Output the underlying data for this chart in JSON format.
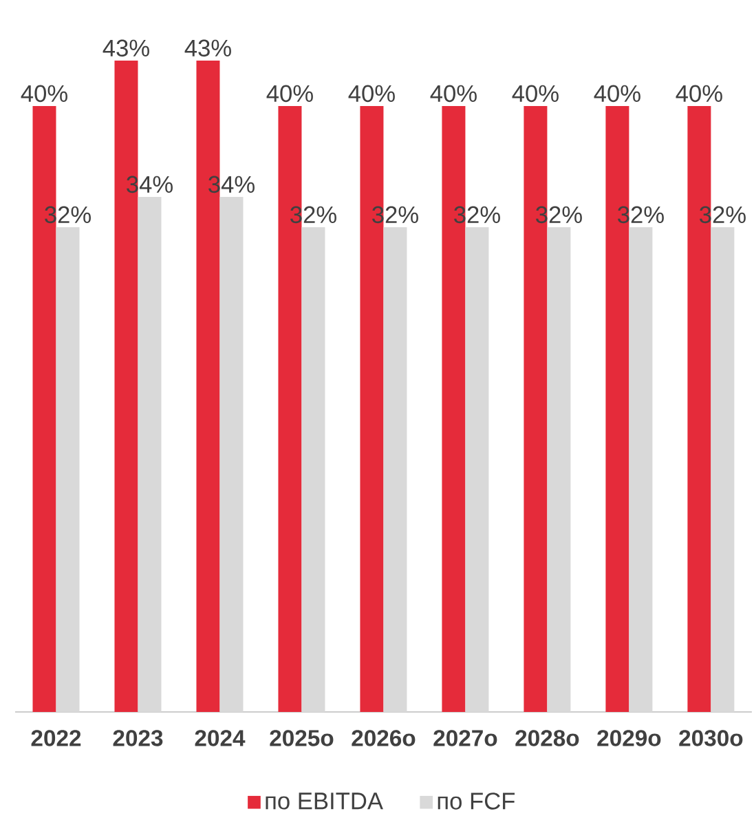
{
  "chart_data": {
    "type": "bar",
    "categories": [
      "2022",
      "2023",
      "2024",
      "2025о",
      "2026о",
      "2027о",
      "2028о",
      "2029о",
      "2030о"
    ],
    "series": [
      {
        "name": "по EBITDA",
        "color": "#e52b3a",
        "values": [
          40,
          43,
          43,
          40,
          40,
          40,
          40,
          40,
          40
        ],
        "value_labels": [
          "40%",
          "43%",
          "43%",
          "40%",
          "40%",
          "40%",
          "40%",
          "40%",
          "40%"
        ]
      },
      {
        "name": "по FCF",
        "color": "#d9d9d9",
        "values": [
          32,
          34,
          34,
          32,
          32,
          32,
          32,
          32,
          32
        ],
        "value_labels": [
          "32%",
          "34%",
          "34%",
          "32%",
          "32%",
          "32%",
          "32%",
          "32%",
          "32%"
        ]
      }
    ],
    "legend": "bottom"
  }
}
